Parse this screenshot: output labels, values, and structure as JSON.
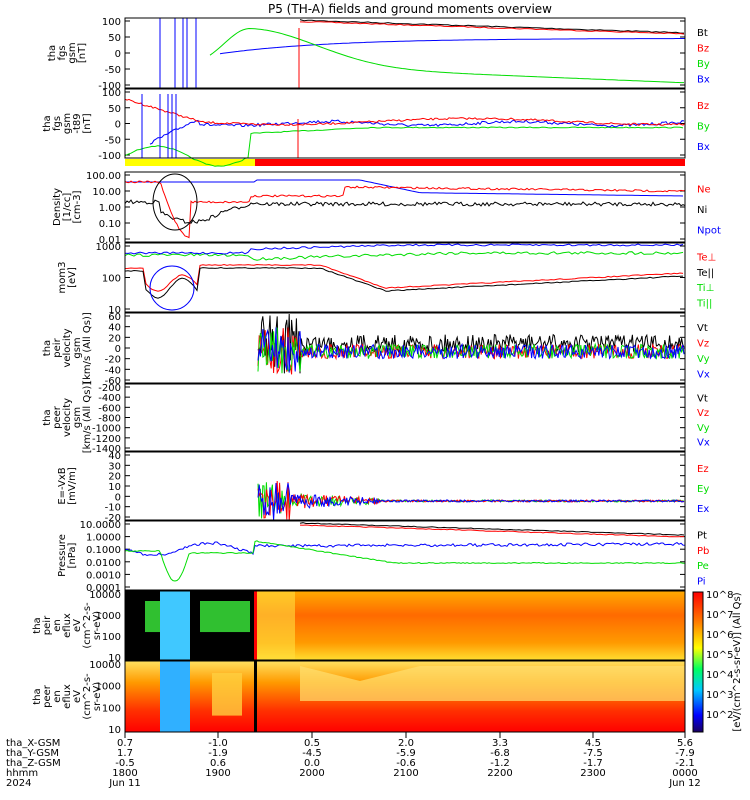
{
  "title": "P5 (TH-A) fields and ground moments overview",
  "colors": {
    "black": "#000000",
    "red": "#ff0000",
    "green": "#00dd00",
    "blue": "#0000ff",
    "yellow": "#ffff00"
  },
  "chart_data": {
    "type": "line",
    "time_axis": {
      "rows": [
        {
          "label": "tha_X-GSM",
          "values": [
            "0.7",
            "-1.0",
            "0.5",
            "2.0",
            "3.3",
            "4.5",
            "5.6"
          ]
        },
        {
          "label": "tha_Y-GSM",
          "values": [
            "1.7",
            "-1.9",
            "-4.5",
            "-5.9",
            "-6.8",
            "-7.5",
            "-7.9"
          ]
        },
        {
          "label": "tha_Z-GSM",
          "values": [
            "-0.5",
            "0.6",
            "0.0",
            "-0.6",
            "-1.2",
            "-1.7",
            "-2.1"
          ]
        },
        {
          "label": "hhmm",
          "values": [
            "1800",
            "1900",
            "2000",
            "2100",
            "2200",
            "2300",
            "0000"
          ]
        },
        {
          "label": "2024",
          "values": [
            "Jun 11",
            "",
            "",
            "",
            "",
            "",
            "Jun 12"
          ]
        }
      ],
      "range": [
        "1800",
        "0000"
      ]
    },
    "panels": [
      {
        "ylabel": [
          "tha",
          "fgs",
          "gsm",
          "[nT]"
        ],
        "ticks": [
          "100",
          "50",
          "0",
          "-50",
          "-100"
        ],
        "ylim": [
          -100,
          100
        ],
        "legend": [
          {
            "name": "Bt",
            "color": "black"
          },
          {
            "name": "Bz",
            "color": "red"
          },
          {
            "name": "By",
            "color": "green"
          },
          {
            "name": "Bx",
            "color": "blue"
          }
        ]
      },
      {
        "ylabel": [
          "tha",
          "fgs",
          "gsm",
          "-t89",
          "[nT]"
        ],
        "ticks": [
          "100",
          "50",
          "0",
          "-50",
          "-100"
        ],
        "ylim": [
          -120,
          120
        ],
        "legend": [
          {
            "name": "Bz",
            "color": "red"
          },
          {
            "name": "By",
            "color": "green"
          },
          {
            "name": "Bx",
            "color": "blue"
          }
        ]
      },
      {
        "ylabel": [
          "Density",
          "[1/cc]",
          "[cm-3]"
        ],
        "ticks": [
          "100.00",
          "10.00",
          "1.00",
          "0.10",
          "0.01"
        ],
        "scale": "log",
        "legend": [
          {
            "name": "Ne",
            "color": "red"
          },
          {
            "name": "Ni",
            "color": "black"
          },
          {
            "name": "Npot",
            "color": "blue"
          }
        ]
      },
      {
        "ylabel": [
          "mom3",
          "[eV]"
        ],
        "ticks": [
          "1000",
          "100",
          "10"
        ],
        "scale": "log",
        "legend": [
          {
            "name": "Te⊥",
            "color": "red"
          },
          {
            "name": "Te||",
            "color": "black"
          },
          {
            "name": "Ti⊥",
            "color": "green"
          },
          {
            "name": "Ti||",
            "color": "green"
          }
        ]
      },
      {
        "ylabel": [
          "tha",
          "peir",
          "velocity",
          "gsm",
          "[km/s (All Qs)]"
        ],
        "ticks": [
          "60",
          "40",
          "20",
          "0",
          "-20",
          "-40",
          "-60"
        ],
        "ylim": [
          -60,
          60
        ],
        "legend": [
          {
            "name": "Vt",
            "color": "black"
          },
          {
            "name": "Vz",
            "color": "red"
          },
          {
            "name": "Vy",
            "color": "green"
          },
          {
            "name": "Vx",
            "color": "blue"
          }
        ]
      },
      {
        "ylabel": [
          "tha",
          "peer",
          "velocity",
          "gsm",
          "[km/s (All Qs)]"
        ],
        "ticks": [
          "-200",
          "-400",
          "-600",
          "-800",
          "-1000",
          "-1200",
          "-1400"
        ],
        "ylim": [
          -1400,
          -200
        ],
        "legend": [
          {
            "name": "Vt",
            "color": "black"
          },
          {
            "name": "Vz",
            "color": "red"
          },
          {
            "name": "Vy",
            "color": "green"
          },
          {
            "name": "Vx",
            "color": "blue"
          }
        ]
      },
      {
        "ylabel": [
          "E=-VxB",
          "[mV/m]"
        ],
        "ticks": [
          "40",
          "30",
          "20",
          "10",
          "0",
          "-10",
          "-20"
        ],
        "ylim": [
          -20,
          40
        ],
        "legend": [
          {
            "name": "Ez",
            "color": "red"
          },
          {
            "name": "Ey",
            "color": "green"
          },
          {
            "name": "Ex",
            "color": "blue"
          }
        ]
      },
      {
        "ylabel": [
          "Pressure",
          "[nPa]"
        ],
        "ticks": [
          "10.0000",
          "1.0000",
          "0.1000",
          "0.0100",
          "0.0010",
          "0.0001"
        ],
        "scale": "log",
        "legend": [
          {
            "name": "Pt",
            "color": "black"
          },
          {
            "name": "Pb",
            "color": "red"
          },
          {
            "name": "Pe",
            "color": "green"
          },
          {
            "name": "Pi",
            "color": "blue"
          }
        ]
      },
      {
        "ylabel": [
          "tha",
          "peir",
          "en",
          "eflux",
          "eV",
          "(cm^2-s-",
          "sr-eV)"
        ],
        "ticks": [
          "10000",
          "1000",
          "100",
          "10"
        ],
        "type": "spectrogram"
      },
      {
        "ylabel": [
          "tha",
          "peer",
          "en",
          "eflux",
          "eV",
          "(cm^2-s-",
          "sr-eV)"
        ],
        "ticks": [
          "10000",
          "1000",
          "100",
          "10"
        ],
        "type": "spectrogram"
      }
    ],
    "colorbar": {
      "label": "[eV/(cm^2-s-sr-eV)] (All Qs)",
      "ticks": [
        "10^8",
        "10^7",
        "10^6",
        "10^5",
        "10^4",
        "10^3",
        "10^2"
      ]
    }
  }
}
